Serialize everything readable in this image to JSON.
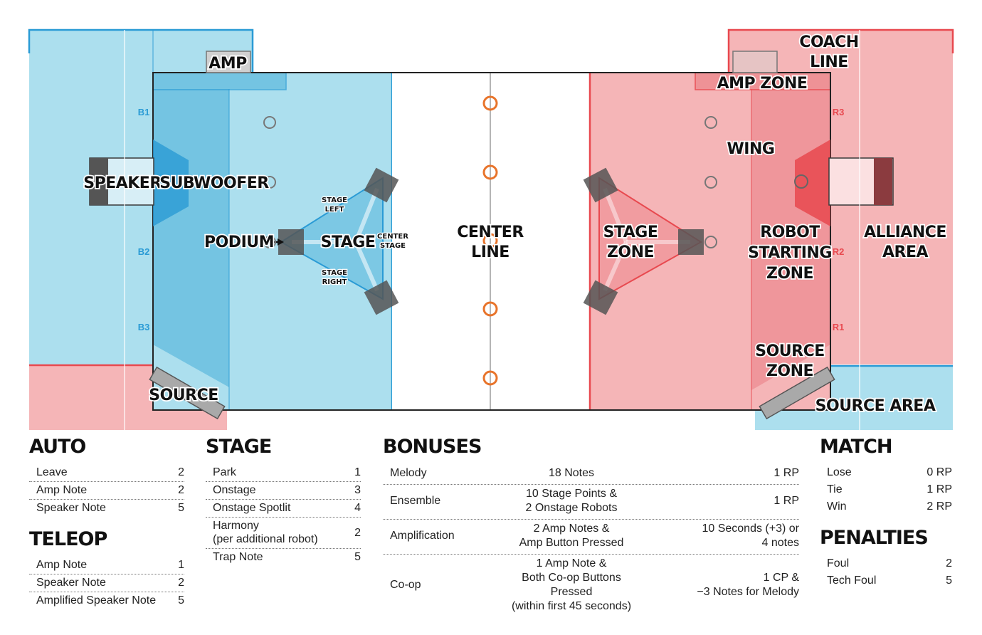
{
  "field": {
    "labels": {
      "amp": "AMP",
      "coach_line": "COACH\nLINE",
      "amp_zone": "AMP ZONE",
      "speaker": "SPEAKER",
      "subwoofer": "SUBWOOFER",
      "wing": "WING",
      "podium": "PODIUM",
      "stage": "STAGE",
      "stage_left": "STAGE\nLEFT",
      "stage_right": "STAGE\nRIGHT",
      "center_stage": "CENTER\nSTAGE",
      "center_line": "CENTER\nLINE",
      "stage_zone": "STAGE\nZONE",
      "robot_starting_zone": "ROBOT\nSTARTING\nZONE",
      "alliance_area": "ALLIANCE\nAREA",
      "source_zone": "SOURCE\nZONE",
      "source": "SOURCE",
      "source_area": "SOURCE AREA"
    },
    "stations": {
      "b1": "B1",
      "b2": "B2",
      "b3": "B3",
      "r1": "R1",
      "r2": "R2",
      "r3": "R3"
    },
    "colors": {
      "blue": "#acdfee",
      "blue_dark": "#62bbde",
      "blue_line": "#2a9bd5",
      "red": "#f5b5b7",
      "red_dark": "#ee8f93",
      "red_line": "#e8494f",
      "note": "#e8742b"
    }
  },
  "auto": {
    "title": "AUTO",
    "rows": [
      {
        "label": "Leave",
        "value": "2"
      },
      {
        "label": "Amp Note",
        "value": "2"
      },
      {
        "label": "Speaker Note",
        "value": "5"
      }
    ]
  },
  "teleop": {
    "title": "TELEOP",
    "rows": [
      {
        "label": "Amp Note",
        "value": "1"
      },
      {
        "label": "Speaker Note",
        "value": "2"
      },
      {
        "label": "Amplified Speaker Note",
        "value": "5"
      }
    ]
  },
  "stage": {
    "title": "STAGE",
    "rows": [
      {
        "label": "Park",
        "value": "1"
      },
      {
        "label": "Onstage",
        "value": "3"
      },
      {
        "label": "Onstage Spotlit",
        "value": "4"
      },
      {
        "label": "Harmony\n(per additional robot)",
        "value": "2"
      },
      {
        "label": "Trap Note",
        "value": "5"
      }
    ]
  },
  "bonuses": {
    "title": "BONUSES",
    "rows": [
      {
        "label": "Melody",
        "req": "18 Notes",
        "value": "1 RP"
      },
      {
        "label": "Ensemble",
        "req": "10 Stage Points &\n2 Onstage Robots",
        "value": "1 RP"
      },
      {
        "label": "Amplification",
        "req": "2 Amp Notes &\nAmp Button Pressed",
        "value": "10 Seconds (+3) or\n4 notes"
      },
      {
        "label": "Co-op",
        "req": "1 Amp Note &\nBoth Co-op Buttons Pressed\n(within first 45 seconds)",
        "value": "1 CP &\n−3 Notes for Melody"
      }
    ]
  },
  "match": {
    "title": "MATCH",
    "rows": [
      {
        "label": "Lose",
        "value": "0 RP"
      },
      {
        "label": "Tie",
        "value": "1 RP"
      },
      {
        "label": "Win",
        "value": "2 RP"
      }
    ]
  },
  "penalties": {
    "title": "PENALTIES",
    "rows": [
      {
        "label": "Foul",
        "value": "2"
      },
      {
        "label": "Tech Foul",
        "value": "5"
      }
    ]
  }
}
